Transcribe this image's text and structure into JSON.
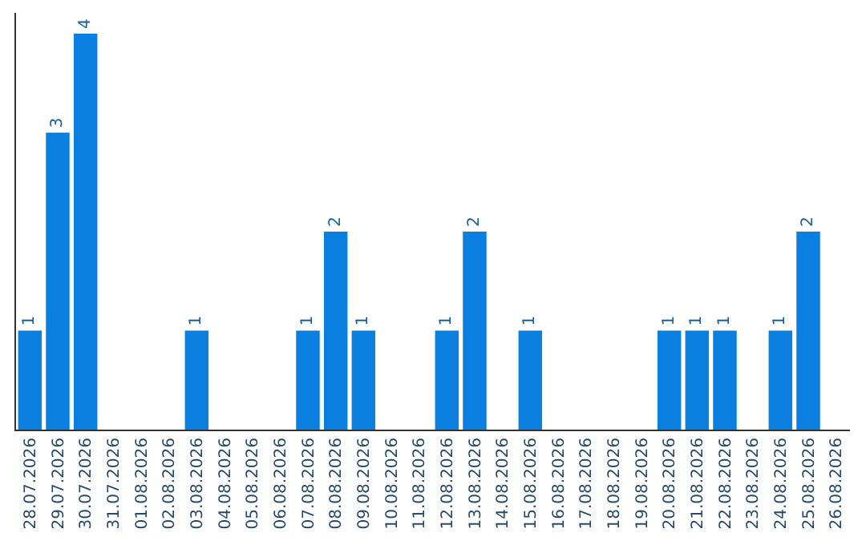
{
  "chart_data": {
    "type": "bar",
    "categories": [
      "28.07.2026",
      "29.07.2026",
      "30.07.2026",
      "31.07.2026",
      "01.08.2026",
      "02.08.2026",
      "03.08.2026",
      "04.08.2026",
      "05.08.2026",
      "06.08.2026",
      "07.08.2026",
      "08.08.2026",
      "09.08.2026",
      "10.08.2026",
      "11.08.2026",
      "12.08.2026",
      "13.08.2026",
      "14.08.2026",
      "15.08.2026",
      "16.08.2026",
      "17.08.2026",
      "18.08.2026",
      "19.08.2026",
      "20.08.2026",
      "21.08.2026",
      "22.08.2026",
      "23.08.2026",
      "24.08.2026",
      "25.08.2026",
      "26.08.2026"
    ],
    "values": [
      1,
      3,
      4,
      0,
      0,
      0,
      1,
      0,
      0,
      0,
      1,
      2,
      1,
      0,
      0,
      1,
      2,
      0,
      1,
      0,
      0,
      0,
      0,
      1,
      1,
      1,
      0,
      1,
      2,
      0
    ],
    "value_labels": [
      "1",
      "3",
      "4",
      null,
      null,
      null,
      "1",
      null,
      null,
      null,
      "1",
      "2",
      "1",
      null,
      null,
      "1",
      "2",
      null,
      "1",
      null,
      null,
      null,
      null,
      "1",
      "1",
      "1",
      null,
      "1",
      "2",
      null
    ],
    "color": "#0a7fe0",
    "grid": false
  }
}
